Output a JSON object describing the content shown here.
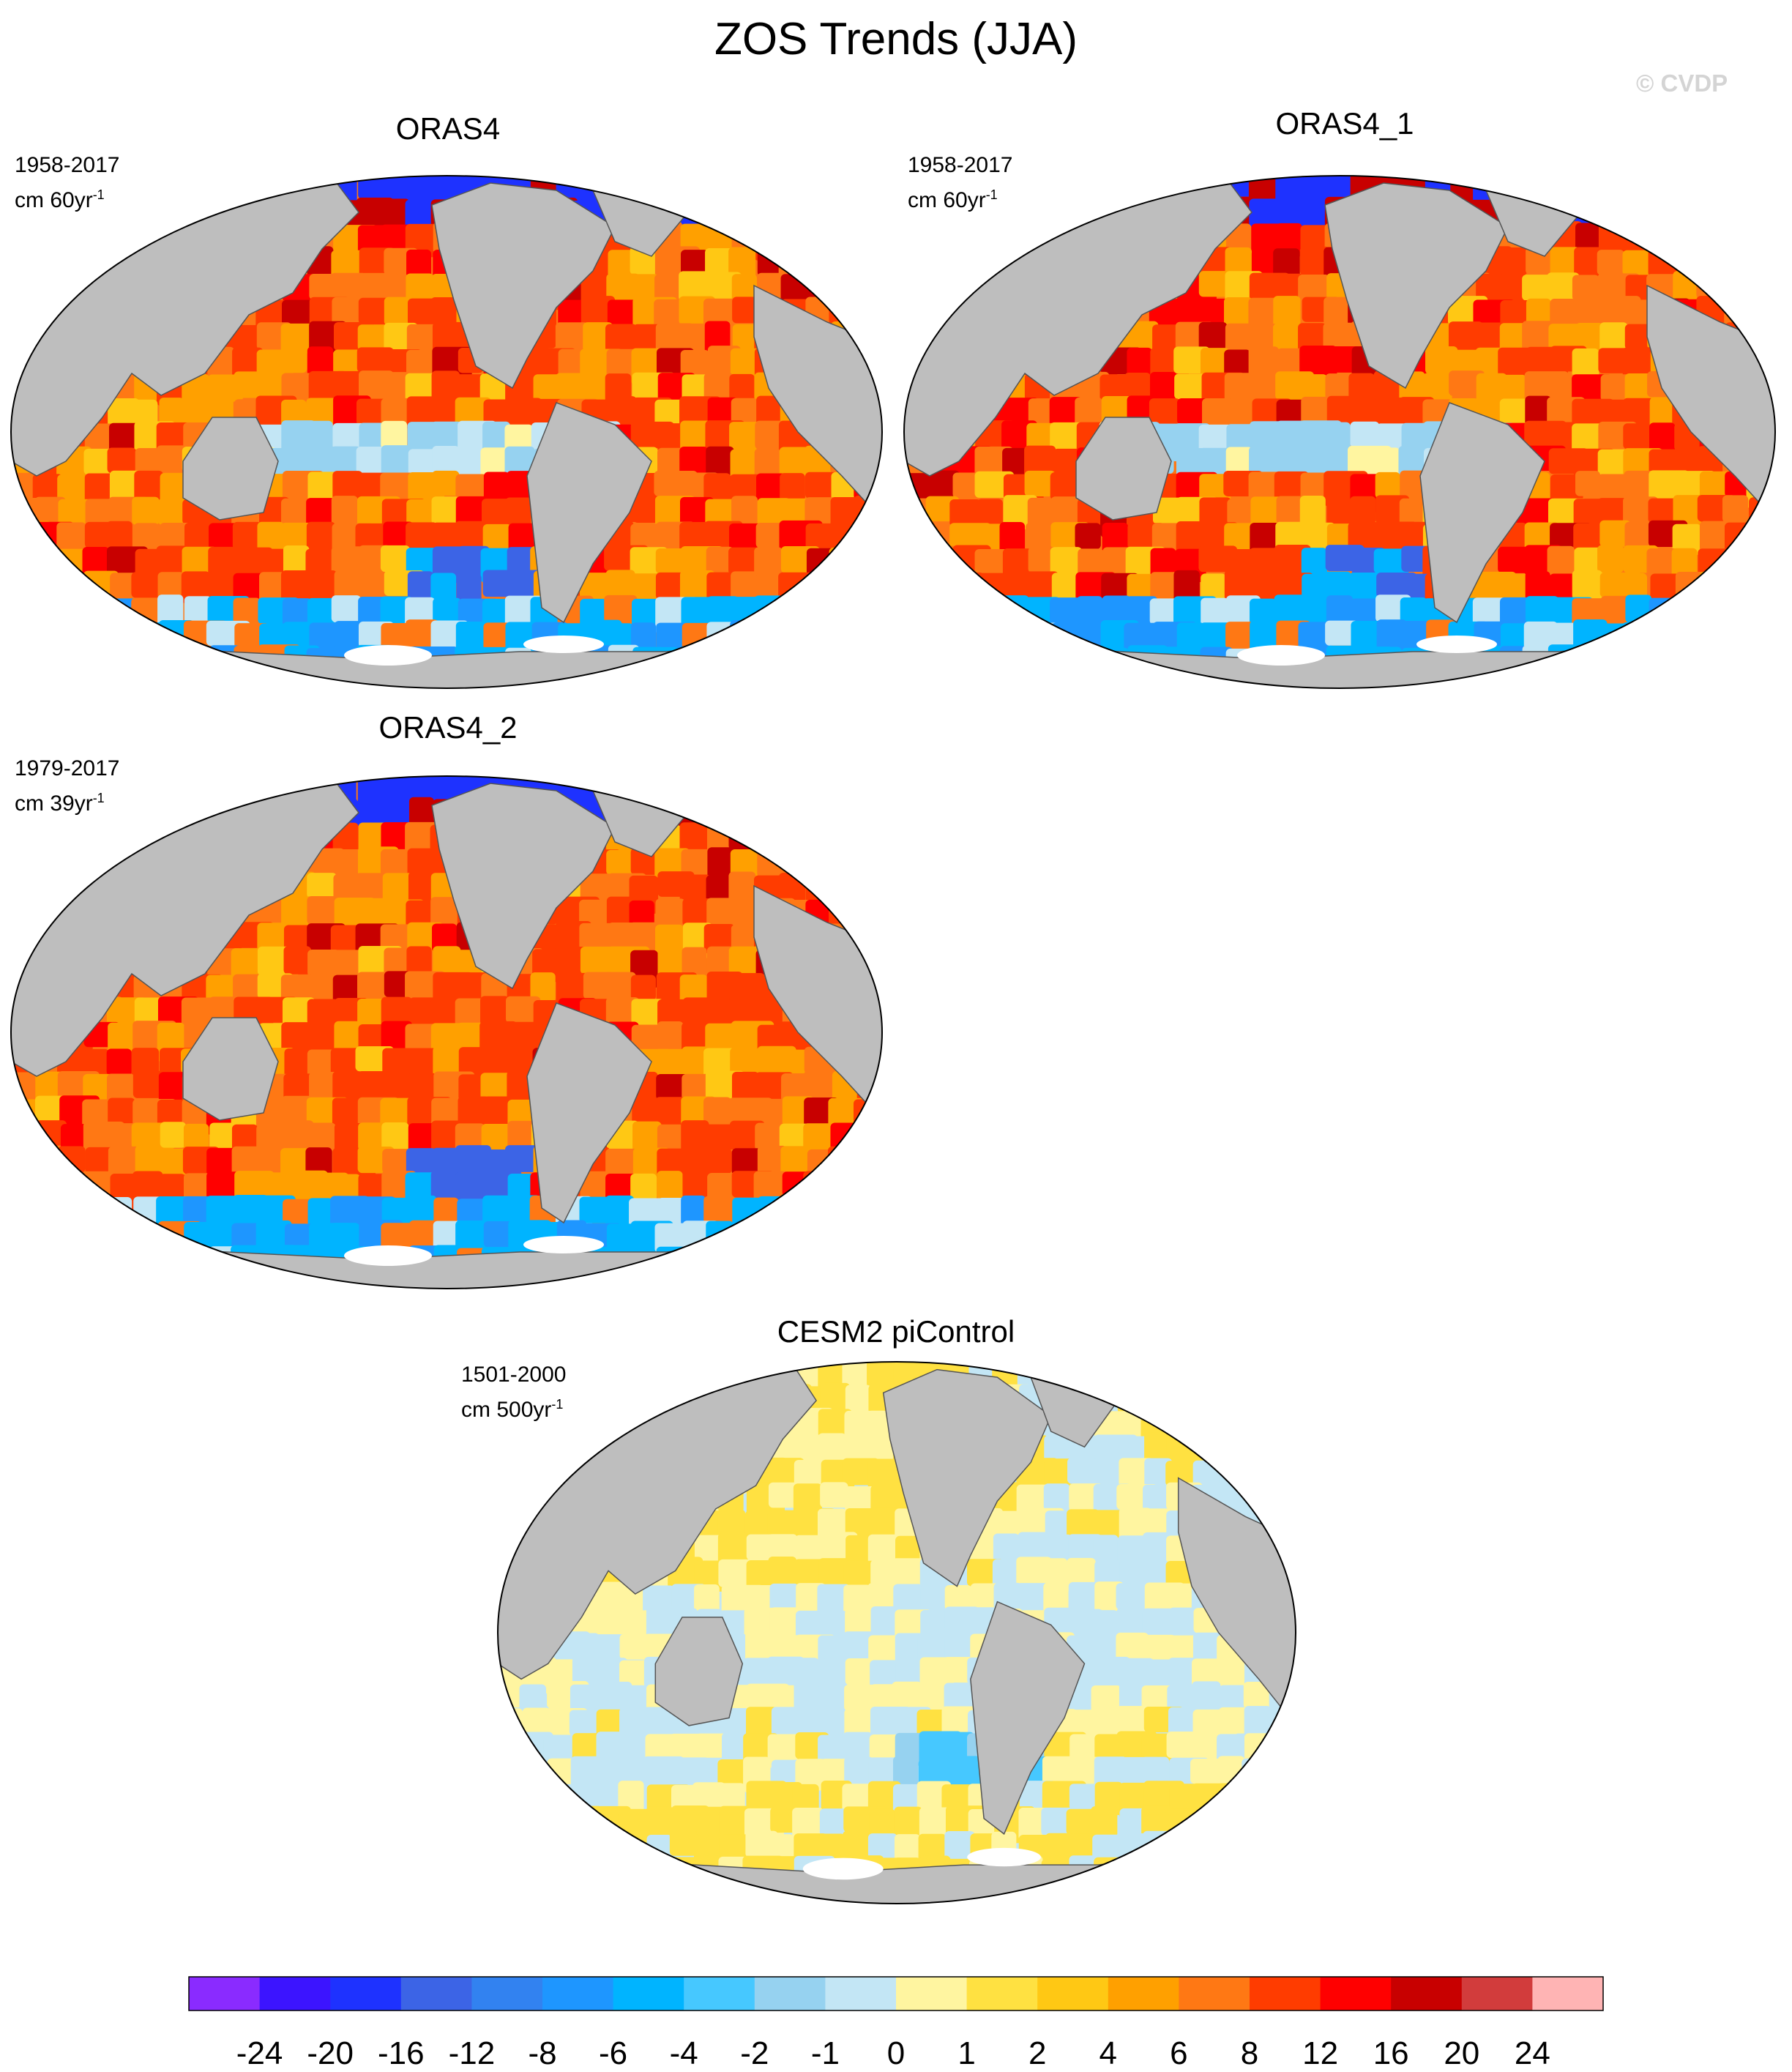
{
  "title": "ZOS Trends (JJA)",
  "watermark": "© CVDP",
  "panels": [
    {
      "name": "ORAS4",
      "period": "1958-2017",
      "units_prefix": "cm 60yr",
      "units_exp": "-1",
      "palette": "warm"
    },
    {
      "name": "ORAS4_1",
      "period": "1958-2017",
      "units_prefix": "cm 60yr",
      "units_exp": "-1",
      "palette": "warm"
    },
    {
      "name": "ORAS4_2",
      "period": "1979-2017",
      "units_prefix": "cm 39yr",
      "units_exp": "-1",
      "palette": "warm2"
    },
    {
      "name": "CESM2 piControl",
      "period": "1501-2000",
      "units_prefix": "cm 500yr",
      "units_exp": "-1",
      "palette": "pale"
    }
  ],
  "colorbar": {
    "colors": [
      "#8a2bff",
      "#3c14ff",
      "#1e32ff",
      "#3c64e6",
      "#3282f0",
      "#1e96ff",
      "#00b4ff",
      "#46c8ff",
      "#96d2f0",
      "#c3e6f5",
      "#fff5a0",
      "#ffe141",
      "#ffc814",
      "#ffa000",
      "#ff7814",
      "#ff3c00",
      "#ff0000",
      "#c80000",
      "#d23c3c",
      "#ffb4b4"
    ],
    "tick_labels": [
      "-24",
      "-20",
      "-16",
      "-12",
      "-8",
      "-6",
      "-4",
      "-2",
      "-1",
      "0",
      "1",
      "2",
      "4",
      "6",
      "8",
      "12",
      "16",
      "20",
      "24"
    ]
  },
  "colors": {
    "land": "#bebebe",
    "land_edge": "#555555",
    "ice": "#ffffff"
  }
}
